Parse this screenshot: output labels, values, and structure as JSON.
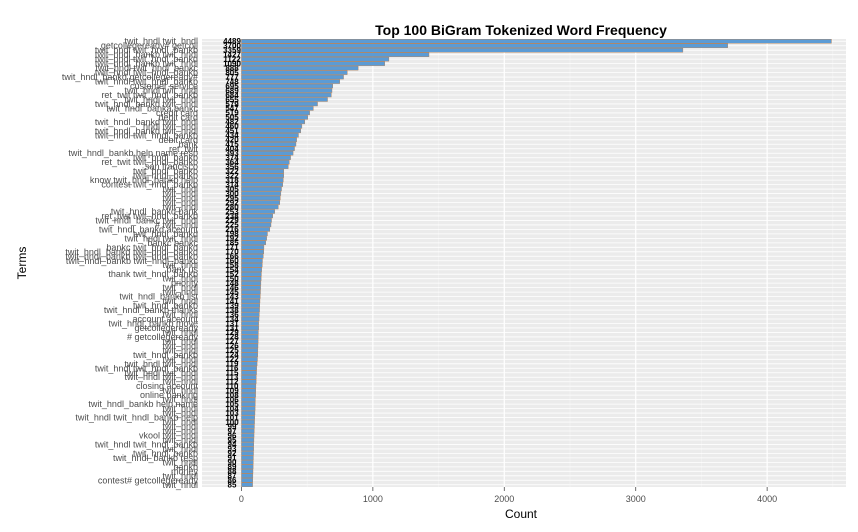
{
  "chart_data": {
    "type": "bar",
    "orientation": "horizontal",
    "title": "Top 100 BiGram Tokenized Word Frequency",
    "xlabel": "Count",
    "ylabel": "Terms",
    "xlim": [
      -300,
      4600
    ],
    "xticks": [
      0,
      1000,
      2000,
      3000,
      4000
    ],
    "grid": true,
    "legend": "none",
    "colors": {
      "bar": "#5b9bd5",
      "bar_border": "#b37a4c",
      "panel": "#ebebeb",
      "grid": "#ffffff"
    },
    "categories": [
      "twit_hndl twit_hndl",
      "getcollegeready# getcoll",
      "twit_hndl twit_hndl_bankb",
      "twit_hndl_bankb twit_hndl",
      "twit_hndl twit_hndl_bankd",
      "twit_hndl_bankb twit_hndl",
      "twit_hndl twit_hndl_bankc",
      "twit_hndl twit_hndl_bankb",
      "twit_hndl_bankd getcollegeready#",
      "twit_hndl twit_hndl_bankb",
      "customer service",
      "twit_hndl twit_hndl",
      "ret_twit twit_hndl_bankb",
      "twit_hndl twit_hndl",
      "twit_hndl_bankd twit_hndl",
      "twit_hndl_banka bankc",
      "credit card",
      "debit card",
      "twit_hndl_bankd twit_hndl",
      "hndl twit_hndl",
      "twit_hndl_bankd twit_hndl",
      "twit_hndl twit_hndl_bankb",
      "debit card",
      "bank",
      "ret_twit",
      "twit_hndl_bankb help name resp",
      "twit_hndl_bankb",
      "ret_twit twit_hndl_bankb",
      "san francisco",
      "twit_hndl_bankb",
      "twit_hndl_bankb",
      "know twit_hndl_bankb help",
      "contest twit_hndl_bankb",
      "twit_hndl",
      "twit_hndl",
      "twit_hndl",
      "twit_hndl",
      "twit_hndl",
      "twit_hndl_bankd bank",
      "ret_twit twit_hndl_bankb",
      "twit_hndl_bankc twit_hndl",
      "# twit_hndl",
      "twit_hndl_bankd account",
      "twit_hndl_bankd",
      "twit_hndl twit_hndl",
      "bankc bankc",
      "bankc twit_hndl_bankd",
      "twit_hndl_bankd twit_hndl_bankd",
      "twit_hndl_bankb twit_hndl_bankb",
      "twit_hndl_bankb twit_hndl_bankc",
      "twit_hndl",
      "bank us",
      "thank twit_hndl_bankb",
      "twit_hndl",
      "priority",
      "twit_hndl",
      "twit_hndl",
      "twit_hndl_bankb list",
      "twit_hndl",
      "twit_hndl_bankb",
      "twit_hndl_bankb thanks",
      "twit_hndl",
      "account account",
      "twit_hndl_bankb move",
      "getcollegeready",
      "twit_hndl",
      "# getcollegeready",
      "twit_hndl",
      "twit_hndl",
      "twit_hndl",
      "twit_hndl_bankb",
      "twit_hndl",
      "twit_hndl twit_hndl",
      "twit_hndl twit_hndl_bankb",
      "twit_hndl twit_hndl",
      "twit_hndl twit_hndl",
      "twit_hndl",
      "closing account",
      "twit_hndl",
      "online banking",
      "twit_hndl",
      "twit_hndl_bankb help name",
      "twit_hndl",
      "twit_hndl",
      "twit_hndl twit_hndl_bankb help",
      "twit_hndl",
      "twit_hndl",
      "twit_hndl",
      "vkool twit_hndl",
      "twit_hndl",
      "twit_hndl twit_hndl_bankb",
      "twit_hndl",
      "twit_hndl_bankb",
      "twit_hndl_bankb resp",
      "twit_hndl",
      "bankb",
      "money",
      "twit_hndl",
      "contest# getcollegeready",
      "twit_hndl"
    ],
    "values": [
      4489,
      3700,
      3359,
      1427,
      1122,
      1090,
      888,
      805,
      777,
      748,
      695,
      689,
      684,
      655,
      579,
      547,
      519,
      505,
      482,
      460,
      451,
      434,
      420,
      415,
      404,
      393,
      374,
      364,
      356,
      322,
      322,
      318,
      314,
      305,
      300,
      295,
      292,
      280,
      253,
      238,
      229,
      225,
      216,
      198,
      192,
      185,
      171,
      170,
      166,
      160,
      158,
      154,
      152,
      150,
      148,
      146,
      145,
      143,
      141,
      139,
      138,
      136,
      134,
      131,
      131,
      129,
      128,
      127,
      126,
      125,
      124,
      122,
      119,
      116,
      115,
      113,
      112,
      110,
      109,
      108,
      106,
      105,
      104,
      103,
      101,
      100,
      99,
      97,
      96,
      95,
      94,
      93,
      92,
      91,
      90,
      89,
      88,
      87,
      86,
      85
    ]
  }
}
